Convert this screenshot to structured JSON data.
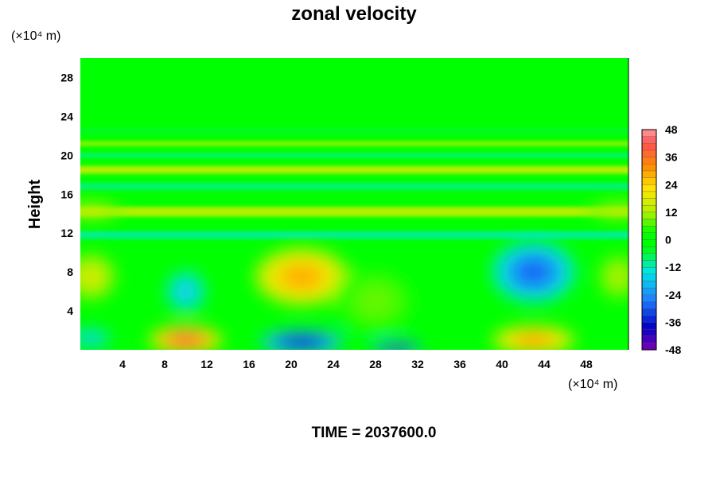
{
  "chart_data": {
    "type": "heatmap",
    "title": "zonal velocity",
    "xlabel": "",
    "ylabel": "Height",
    "x_unit": "(×10⁴ m)",
    "y_unit": "(×10⁴ m)",
    "xlim": [
      0,
      52
    ],
    "ylim": [
      0,
      30
    ],
    "xticks": [
      4,
      8,
      12,
      16,
      20,
      24,
      28,
      32,
      36,
      40,
      44,
      48
    ],
    "yticks": [
      4,
      8,
      12,
      16,
      20,
      24,
      28
    ],
    "colorbar": {
      "range": [
        -48,
        48
      ],
      "step": 3,
      "tick_values": [
        48,
        36,
        24,
        12,
        0,
        -12,
        -24,
        -36,
        -48
      ],
      "colors": {
        "neg_max": "#7a00b4",
        "neg_strong": "#0000c8",
        "neg_mid": "#1e82ff",
        "neg_weak": "#00e6e6",
        "zero": "#00ff00",
        "pos_weak": "#b4f000",
        "pos_mid": "#ffe600",
        "pos_strong": "#ff8c00",
        "pos_max": "#ff5050",
        "pos_top": "#ff9a9a"
      }
    },
    "features": [
      {
        "x": 21,
        "y": 7.5,
        "rx": 4.5,
        "ry": 3.0,
        "value": 28
      },
      {
        "x": 43,
        "y": 8.0,
        "rx": 4.0,
        "ry": 3.2,
        "value": -28
      },
      {
        "x": 10,
        "y": 1.0,
        "rx": 3.5,
        "ry": 1.5,
        "value": 38
      },
      {
        "x": 43,
        "y": 1.0,
        "rx": 4.0,
        "ry": 1.5,
        "value": 30
      },
      {
        "x": 21,
        "y": 0.8,
        "rx": 4.0,
        "ry": 1.2,
        "value": -38
      },
      {
        "x": 30,
        "y": 0.2,
        "rx": 2.5,
        "ry": 0.6,
        "value": -42
      },
      {
        "x": 10,
        "y": 6.0,
        "rx": 2.0,
        "ry": 2.2,
        "value": -18
      },
      {
        "x": 1,
        "y": 1.2,
        "rx": 2.0,
        "ry": 1.0,
        "value": -18
      },
      {
        "x": 1,
        "y": 7.5,
        "rx": 2.5,
        "ry": 2.5,
        "value": 16
      },
      {
        "x": 51,
        "y": 7.5,
        "rx": 2.0,
        "ry": 2.5,
        "value": 12
      },
      {
        "x": 28,
        "y": 5.0,
        "rx": 4.0,
        "ry": 3.5,
        "value": 8
      },
      {
        "x": 1,
        "y": 14.3,
        "rx": 3.0,
        "ry": 0.8,
        "value": 16
      },
      {
        "x": 51,
        "y": 14.3,
        "rx": 3.0,
        "ry": 0.8,
        "value": 14
      }
    ],
    "bands": [
      {
        "y": 11.8,
        "h": 0.8,
        "value": -10
      },
      {
        "y": 14.2,
        "h": 1.0,
        "value": 12
      },
      {
        "y": 16.8,
        "h": 0.8,
        "value": -8
      },
      {
        "y": 18.5,
        "h": 0.8,
        "value": 12
      },
      {
        "y": 20.0,
        "h": 0.5,
        "value": -8
      },
      {
        "y": 21.2,
        "h": 0.5,
        "value": 10
      },
      {
        "y": 22.5,
        "h": 0.5,
        "value": -5
      }
    ]
  },
  "footer": {
    "time_label": "TIME = 2037600.0"
  }
}
